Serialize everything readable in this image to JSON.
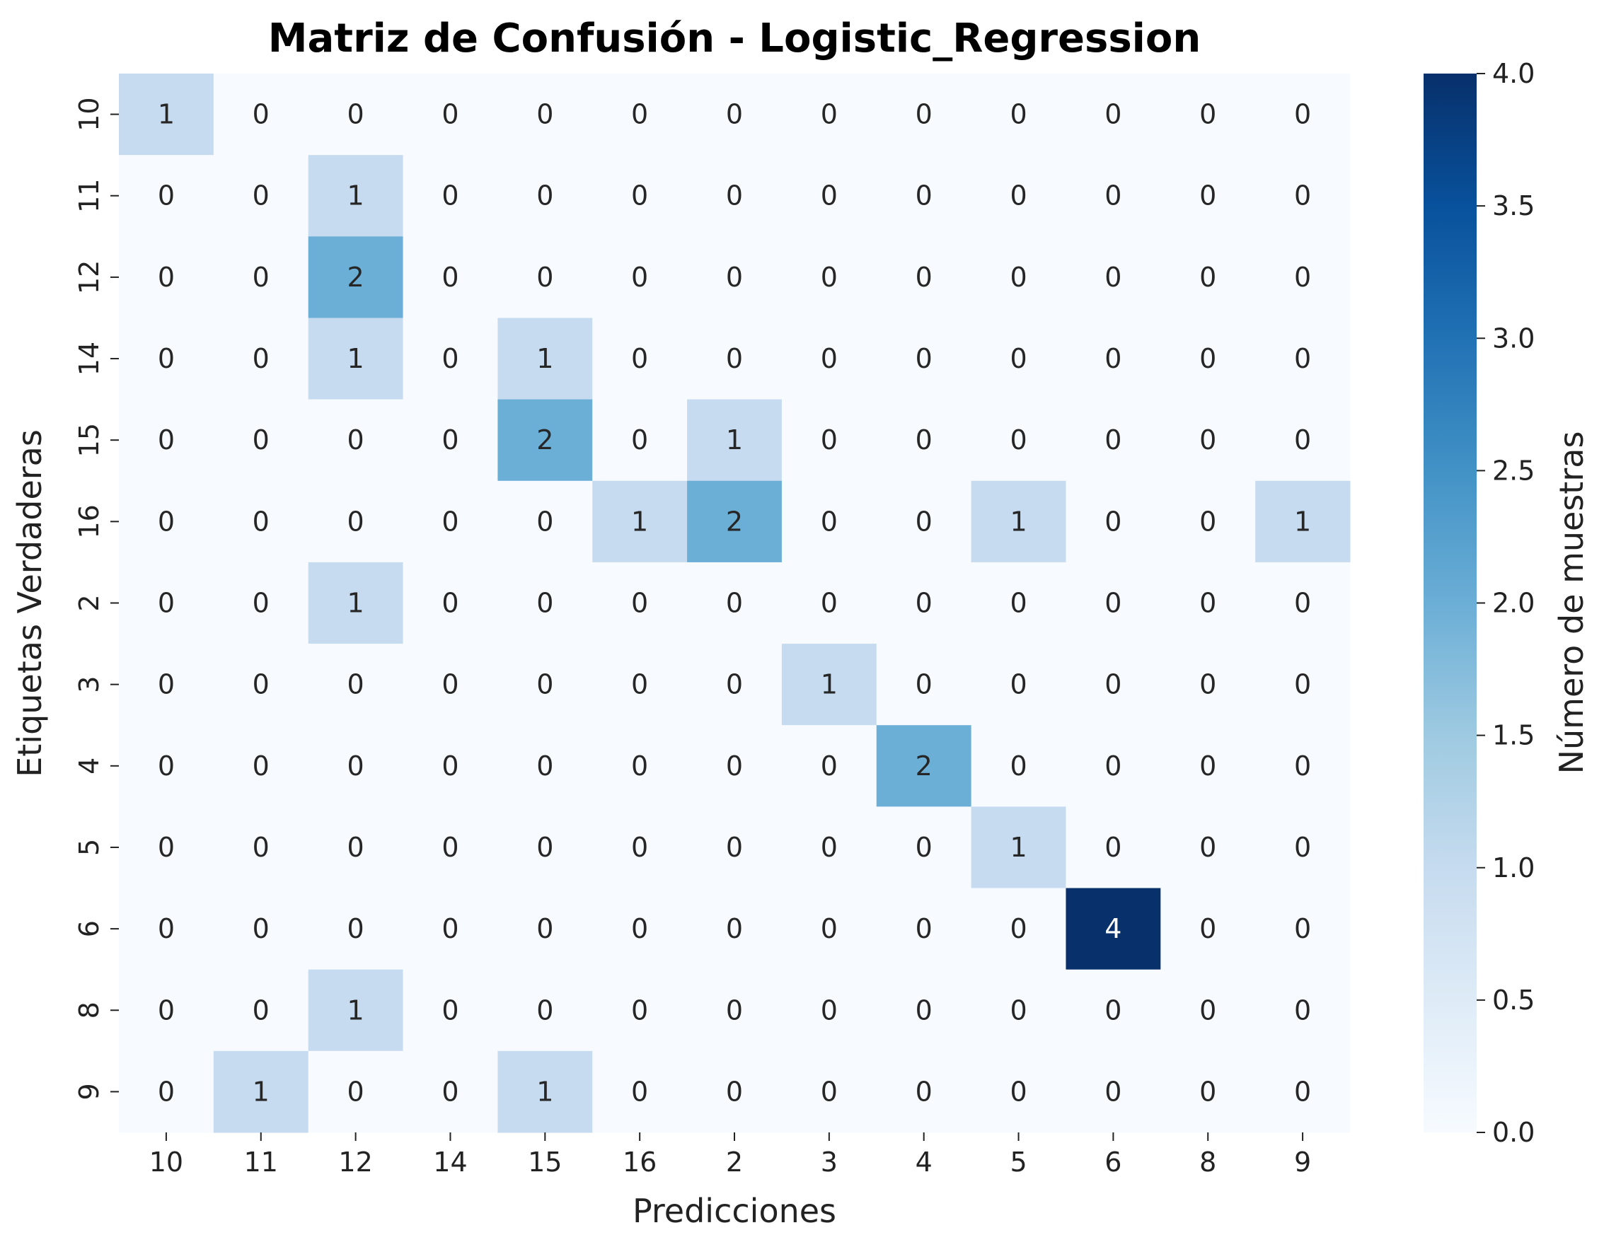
{
  "chart_data": {
    "type": "heatmap",
    "title": "Matriz de Confusión - Logistic_Regression",
    "xlabel": "Predicciones",
    "ylabel": "Etiquetas Verdaderas",
    "x_categories": [
      "10",
      "11",
      "12",
      "14",
      "15",
      "16",
      "2",
      "3",
      "4",
      "5",
      "6",
      "8",
      "9"
    ],
    "y_categories": [
      "10",
      "11",
      "12",
      "14",
      "15",
      "16",
      "2",
      "3",
      "4",
      "5",
      "6",
      "8",
      "9"
    ],
    "values": [
      [
        1,
        0,
        0,
        0,
        0,
        0,
        0,
        0,
        0,
        0,
        0,
        0,
        0
      ],
      [
        0,
        0,
        1,
        0,
        0,
        0,
        0,
        0,
        0,
        0,
        0,
        0,
        0
      ],
      [
        0,
        0,
        2,
        0,
        0,
        0,
        0,
        0,
        0,
        0,
        0,
        0,
        0
      ],
      [
        0,
        0,
        1,
        0,
        1,
        0,
        0,
        0,
        0,
        0,
        0,
        0,
        0
      ],
      [
        0,
        0,
        0,
        0,
        2,
        0,
        1,
        0,
        0,
        0,
        0,
        0,
        0
      ],
      [
        0,
        0,
        0,
        0,
        0,
        1,
        2,
        0,
        0,
        1,
        0,
        0,
        1
      ],
      [
        0,
        0,
        1,
        0,
        0,
        0,
        0,
        0,
        0,
        0,
        0,
        0,
        0
      ],
      [
        0,
        0,
        0,
        0,
        0,
        0,
        0,
        1,
        0,
        0,
        0,
        0,
        0
      ],
      [
        0,
        0,
        0,
        0,
        0,
        0,
        0,
        0,
        2,
        0,
        0,
        0,
        0
      ],
      [
        0,
        0,
        0,
        0,
        0,
        0,
        0,
        0,
        0,
        1,
        0,
        0,
        0
      ],
      [
        0,
        0,
        0,
        0,
        0,
        0,
        0,
        0,
        0,
        0,
        4,
        0,
        0
      ],
      [
        0,
        0,
        1,
        0,
        0,
        0,
        0,
        0,
        0,
        0,
        0,
        0,
        0
      ],
      [
        0,
        1,
        0,
        0,
        1,
        0,
        0,
        0,
        0,
        0,
        0,
        0,
        0
      ]
    ],
    "colorbar": {
      "label": "Número de muestras",
      "range": [
        0.0,
        4.0
      ],
      "ticks": [
        "0.0",
        "0.5",
        "1.0",
        "1.5",
        "2.0",
        "2.5",
        "3.0",
        "3.5",
        "4.0"
      ],
      "colormap": "Blues",
      "colors": [
        "#f7fbff",
        "#deebf7",
        "#c6dbef",
        "#9ecae1",
        "#6baed6",
        "#4292c6",
        "#2171b5",
        "#08519c",
        "#08306b"
      ]
    },
    "grid": false
  }
}
